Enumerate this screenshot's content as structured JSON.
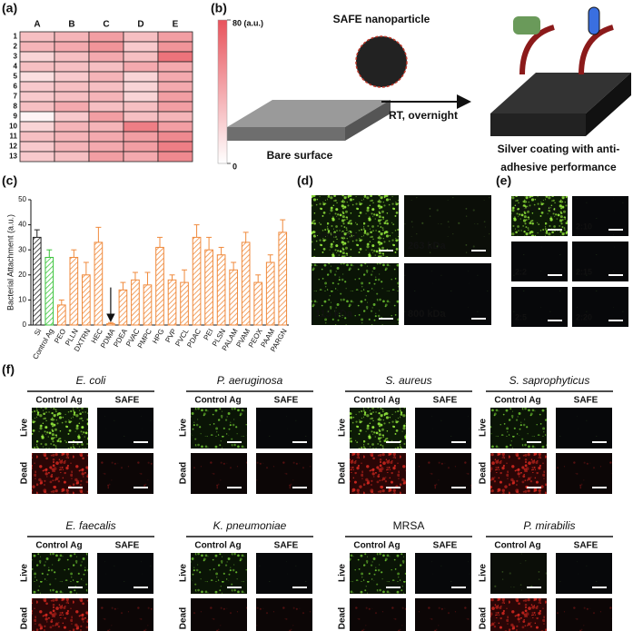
{
  "panel_labels": [
    "(a)",
    "(b)",
    "(c)",
    "(d)",
    "(e)",
    "(f)"
  ],
  "chart_data": [
    {
      "type": "heatmap",
      "columns": [
        "A",
        "B",
        "C",
        "D",
        "E"
      ],
      "rows": [
        "1",
        "2",
        "3",
        "4",
        "5",
        "6",
        "7",
        "8",
        "9",
        "10",
        "11",
        "12",
        "13"
      ],
      "values": [
        [
          30,
          35,
          45,
          30,
          45
        ],
        [
          35,
          40,
          50,
          25,
          50
        ],
        [
          20,
          30,
          40,
          30,
          65
        ],
        [
          30,
          30,
          30,
          40,
          40
        ],
        [
          15,
          25,
          35,
          20,
          40
        ],
        [
          25,
          30,
          30,
          20,
          40
        ],
        [
          25,
          30,
          35,
          20,
          45
        ],
        [
          30,
          40,
          30,
          30,
          45
        ],
        [
          5,
          25,
          45,
          30,
          35
        ],
        [
          20,
          35,
          35,
          60,
          45
        ],
        [
          30,
          35,
          40,
          45,
          55
        ],
        [
          25,
          35,
          40,
          45,
          60
        ],
        [
          25,
          30,
          45,
          40,
          55
        ]
      ],
      "color": "#e8535c",
      "clim": [
        0,
        80
      ],
      "colorbar_ticks": [
        {
          "value": 80,
          "label": "80 (a.u.)"
        },
        0
      ]
    },
    {
      "type": "bar",
      "y_label": "Bacterial Attachment (a.u.)",
      "categories": [
        "Si",
        "Control Ag",
        "PEO",
        "PLLN",
        "DXTRN",
        "HEC",
        "PDMA",
        "PDEA",
        "PVAC",
        "PMPC",
        "HPG",
        "PVP",
        "PVCL",
        "PDAC",
        "PEI",
        "PLSN",
        "PALAM",
        "PVAM",
        "PEOX",
        "PAAM",
        "PARGN"
      ],
      "values": [
        35,
        27,
        8,
        27,
        20,
        33,
        0.5,
        14,
        18,
        16,
        31,
        18,
        17,
        35,
        30,
        28,
        22,
        33,
        17,
        25,
        37
      ],
      "errors": [
        3,
        3,
        2,
        3,
        5,
        6,
        0.5,
        3,
        3,
        5,
        4,
        2,
        5,
        5,
        5,
        3,
        3,
        4,
        3,
        3,
        5
      ],
      "colors": [
        "#222222",
        "#3cc43c",
        "#f08a3c",
        "#f08a3c",
        "#f08a3c",
        "#f08a3c",
        "#f08a3c",
        "#f08a3c",
        "#f08a3c",
        "#f08a3c",
        "#f08a3c",
        "#f08a3c",
        "#f08a3c",
        "#f08a3c",
        "#f08a3c",
        "#f08a3c",
        "#f08a3c",
        "#f08a3c",
        "#f08a3c",
        "#f08a3c",
        "#f08a3c"
      ],
      "ylim": [
        0,
        50
      ],
      "yticks": [
        0,
        10,
        20,
        30,
        40,
        50
      ]
    }
  ],
  "schematic": {
    "nanoparticle": "SAFE nanoparticle",
    "condition": "RT, overnight",
    "substrate": "Bare surface",
    "result": [
      "Silver coating with anti-",
      "adhesive performance"
    ]
  },
  "panel_d": {
    "labels": [
      "Control Ag",
      "263 kDa",
      "115 kDa",
      "800 kDa"
    ]
  },
  "panel_e": {
    "labels": [
      "Control Ag",
      "2:10",
      "2:2",
      "2:15",
      "2:5",
      "2:20"
    ]
  },
  "panel_f": {
    "columns": [
      "Control Ag",
      "SAFE"
    ],
    "rows": [
      "Live",
      "Dead"
    ],
    "species": [
      {
        "name": "E. coli",
        "italic": true
      },
      {
        "name": "P. aeruginosa",
        "italic": true
      },
      {
        "name": "S. aureus",
        "italic": true
      },
      {
        "name": "S. saprophyticus",
        "italic": true
      },
      {
        "name": "E. faecalis",
        "italic": true
      },
      {
        "name": "K. pneumoniae",
        "italic": true
      },
      {
        "name": "MRSA",
        "italic": false
      },
      {
        "name": "P. mirabilis",
        "italic": true
      }
    ]
  }
}
